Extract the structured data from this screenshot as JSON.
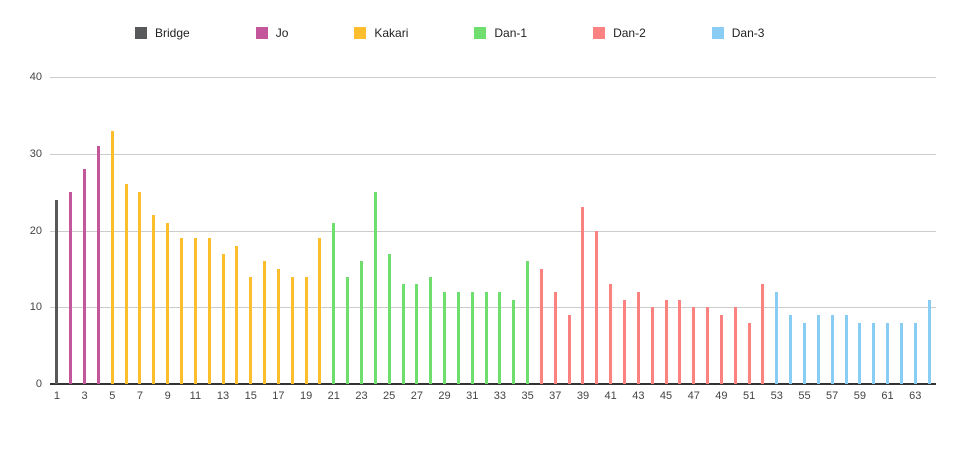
{
  "background_color": "#ffffff",
  "axis": {
    "tick_color": "#444444",
    "gridline_color": "#cccccc",
    "baseline_color": "#333333"
  },
  "chart_data": {
    "type": "bar",
    "title": "",
    "xlabel": "",
    "ylabel": "",
    "n_categories": 64,
    "ylim": [
      0,
      40
    ],
    "yticks": [
      0,
      10,
      20,
      30,
      40
    ],
    "xticks": [
      1,
      3,
      5,
      7,
      9,
      11,
      13,
      15,
      17,
      19,
      21,
      23,
      25,
      27,
      29,
      31,
      33,
      35,
      37,
      39,
      41,
      43,
      45,
      47,
      49,
      51,
      53,
      55,
      57,
      59,
      61,
      63
    ],
    "grid": true,
    "legend": {
      "position": "top"
    },
    "series": [
      {
        "name": "Bridge",
        "color": "#58595B",
        "range": [
          1,
          1
        ],
        "values": [
          24
        ]
      },
      {
        "name": "Jo",
        "color": "#C4569B",
        "range": [
          2,
          4
        ],
        "values": [
          25,
          28,
          31
        ]
      },
      {
        "name": "Kakari",
        "color": "#FCBE2C",
        "range": [
          5,
          20
        ],
        "values": [
          33,
          26,
          25,
          22,
          21,
          19,
          19,
          19,
          17,
          18,
          14,
          16,
          15,
          14,
          14,
          19
        ]
      },
      {
        "name": "Dan-1",
        "color": "#6FDE6F",
        "range": [
          21,
          35
        ],
        "values": [
          21,
          14,
          16,
          25,
          17,
          13,
          13,
          14,
          12,
          12,
          12,
          12,
          12,
          11,
          16
        ]
      },
      {
        "name": "Dan-2",
        "color": "#FB8281",
        "range": [
          36,
          52
        ],
        "values": [
          15,
          12,
          9,
          23,
          20,
          13,
          11,
          12,
          10,
          11,
          11,
          10,
          10,
          9,
          10,
          8,
          13
        ]
      },
      {
        "name": "Dan-3",
        "color": "#89CDF4",
        "range": [
          53,
          64
        ],
        "values": [
          12,
          9,
          8,
          9,
          9,
          9,
          8,
          8,
          8,
          8,
          8,
          11
        ]
      }
    ]
  }
}
